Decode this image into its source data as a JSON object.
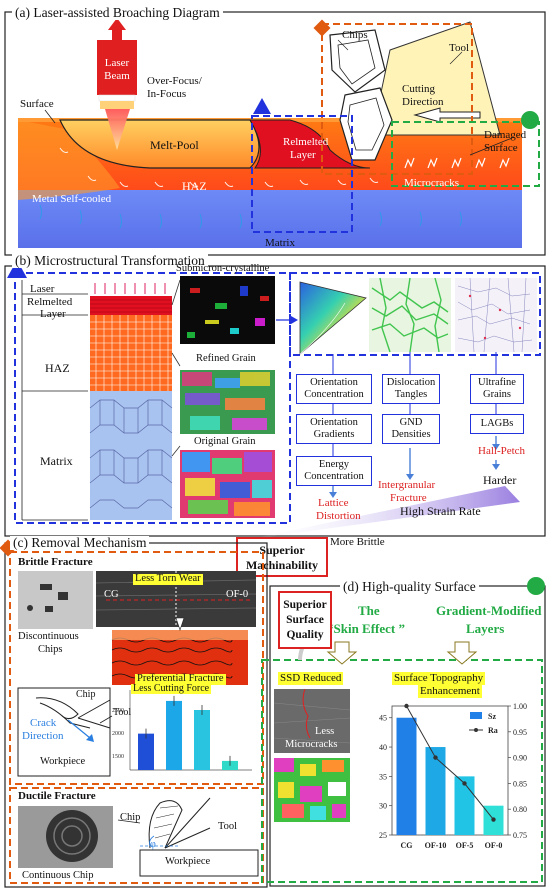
{
  "panel_a": {
    "title": "(a)  Laser-assisted Broaching Diagram",
    "laser_line1": "Laser",
    "laser_line2": "Beam",
    "focus_line1": "Over-Focus/",
    "focus_line2": "In-Focus",
    "surface": "Surface",
    "melt_pool": "Melt-Pool",
    "remelted_line1": "Relmelted",
    "remelted_line2": "Layer",
    "haz": "HAZ",
    "self_cooled": "Metal Self-cooled",
    "matrix": "Matrix",
    "chips": "Chips",
    "tool": "Tool",
    "cutting_line1": "Cutting",
    "cutting_line2": "Direction",
    "damaged_line1": "Damaged",
    "damaged_line2": "Surface",
    "microcracks": "Microcracks"
  },
  "panel_b": {
    "title": "(b)  Microstructural Transformation",
    "layer_laser": "Laser",
    "layer_remelted_1": "Relmelted",
    "layer_remelted_2": "Layer",
    "layer_haz": "HAZ",
    "layer_matrix": "Matrix",
    "grain_top": "Submicron-crystalline",
    "grain_mid": "Refined Grain",
    "grain_bottom": "Original Grain",
    "col1": [
      "Orientation Concentration",
      "Orientation Gradients",
      "Energy Concentration"
    ],
    "col2": [
      "Dislocation Tangles",
      "GND Densities"
    ],
    "col3": [
      "Ultrafine Grains",
      "LAGBs"
    ],
    "lattice_1": "Lattice",
    "lattice_2": "Distortion",
    "intergranular_1": "Intergranular",
    "intergranular_2": "Fracture",
    "hall_petch": "Hall-Petch",
    "harder": "Harder",
    "strain_rate": "High Strain Rate",
    "more_brittle": "More Brittle",
    "superior_mach_1": "Superior",
    "superior_mach_2": "Machinability"
  },
  "panel_c": {
    "title": "(c)  Removal Mechanism",
    "brittle": "Brittle  Fracture",
    "discontinuous_1": "Discontinuous",
    "discontinuous_2": "Chips",
    "less_torn": "Less Torn Wear",
    "cg": "CG",
    "of0": "OF-0",
    "preferential": "Preferential Fracture",
    "chip": "Chip",
    "tool": "Tool",
    "crack_1": "Crack",
    "crack_2": "Direction",
    "workpiece": "Workpiece",
    "less_force": "Less Cutting Force",
    "force_bar_values": [
      2000,
      2900,
      2650,
      1250
    ],
    "force_bar_colors": [
      "#1f4fd6",
      "#1ba7e8",
      "#29c4e0",
      "#31d9c8"
    ],
    "ductile": "Ductile Fracture",
    "chip2": "Chip",
    "tool2": "Tool",
    "continuous": "Continuous Chip",
    "workpiece2": "Workpiece",
    "phi": "φ"
  },
  "panel_d": {
    "title": "(d)  High-quality Surface",
    "skin_1": "The",
    "skin_2": "“Skin Effect ”",
    "gradient_1": "Gradient-Modified",
    "gradient_2": "Layers",
    "superior_1": "Superior",
    "superior_2": "Surface",
    "superior_3": "Quality",
    "ssd": "SSD Reduced",
    "less_1": "Less",
    "less_2": "Microcracks",
    "topo_1": "Surface Topography",
    "topo_2": "Enhancement"
  },
  "chart_data": {
    "type": "bar",
    "categories": [
      "CG",
      "OF-10",
      "OF-5",
      "OF-0"
    ],
    "series": [
      {
        "name": "Sz",
        "type": "bar",
        "values": [
          45,
          40,
          35,
          30
        ],
        "colors": [
          "#2080e8",
          "#1fa8e6",
          "#22c4e6",
          "#2ee0d8"
        ]
      },
      {
        "name": "Ra",
        "type": "line",
        "values": [
          1.0,
          0.9,
          0.85,
          0.78
        ],
        "color": "#333333"
      }
    ],
    "ylim": [
      25,
      47
    ],
    "yticks": [
      25,
      30,
      35,
      40,
      45
    ],
    "y2lim": [
      0.75,
      1.0
    ],
    "y2ticks": [
      0.75,
      0.8,
      0.85,
      0.9,
      0.95,
      1.0
    ],
    "legend": "top-right"
  },
  "colors": {
    "blue_frame": "#2233dd",
    "orange_frame": "#e05a10",
    "green_frame": "#22aa44",
    "red_frame": "#dd2222"
  }
}
